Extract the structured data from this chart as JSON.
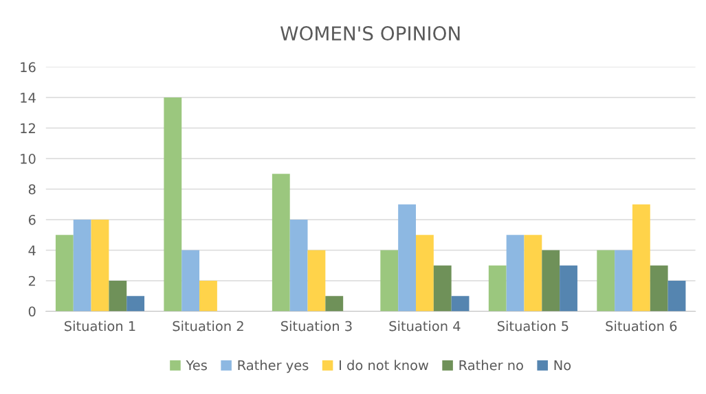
{
  "chart_data": {
    "type": "bar",
    "title": "WOMEN'S OPINION",
    "categories": [
      "Situation 1",
      "Situation 2",
      "Situation 3",
      "Situation 4",
      "Situation 5",
      "Situation 6"
    ],
    "series": [
      {
        "name": "Yes",
        "color": "#9bc77e",
        "values": [
          5,
          14,
          9,
          4,
          3,
          4
        ]
      },
      {
        "name": "Rather yes",
        "color": "#8db8e2",
        "values": [
          6,
          4,
          6,
          7,
          5,
          4
        ]
      },
      {
        "name": "I do not know",
        "color": "#ffd34a",
        "values": [
          6,
          2,
          4,
          5,
          5,
          7
        ]
      },
      {
        "name": "Rather no",
        "color": "#6f9159",
        "values": [
          2,
          0,
          1,
          3,
          4,
          3
        ]
      },
      {
        "name": "No",
        "color": "#5585b0",
        "values": [
          1,
          0,
          0,
          1,
          3,
          2
        ]
      }
    ],
    "ylim": [
      0,
      16
    ],
    "yticks": [
      0,
      2,
      4,
      6,
      8,
      10,
      12,
      14,
      16
    ],
    "grid": "y",
    "legend": "bottom"
  }
}
